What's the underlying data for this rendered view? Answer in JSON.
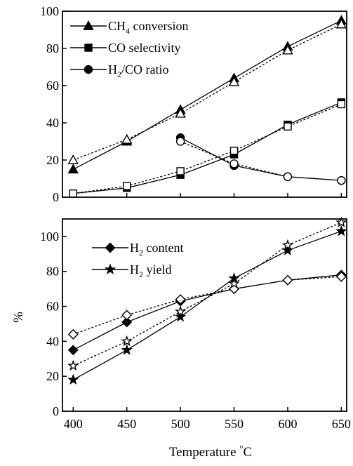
{
  "chart_data": [
    {
      "type": "line",
      "x": [
        400,
        450,
        500,
        550,
        600,
        650
      ],
      "xlim": [
        390,
        655
      ],
      "ylim": [
        0,
        100
      ],
      "yticks": [
        0,
        20,
        40,
        60,
        80,
        100
      ],
      "xlabel": "",
      "ylabel": "",
      "grid": false,
      "legend_position": "top-left",
      "legend": [
        {
          "main": "CH",
          "sub": "4",
          "rest": " conversion",
          "marker": "triangle"
        },
        {
          "main": "CO selectivity",
          "sub": "",
          "rest": "",
          "marker": "square"
        },
        {
          "main": "H",
          "sub": "2",
          "rest": "/CO ratio",
          "marker": "circle"
        }
      ],
      "series": [
        {
          "name": "CH4 conversion",
          "marker": "triangle",
          "filled": true,
          "dashed": false,
          "x": [
            400,
            450,
            500,
            550,
            600,
            650
          ],
          "values": [
            15,
            30,
            47,
            64,
            81,
            95
          ]
        },
        {
          "marker": "triangle",
          "filled": false,
          "dashed": true,
          "x": [
            400,
            450,
            500,
            550,
            600,
            650
          ],
          "values": [
            20,
            31,
            45,
            62,
            79,
            93
          ]
        },
        {
          "name": "CO selectivity",
          "marker": "square",
          "filled": true,
          "dashed": false,
          "x": [
            400,
            450,
            500,
            550,
            600,
            650
          ],
          "values": [
            2,
            5,
            12,
            23,
            39,
            51
          ]
        },
        {
          "marker": "square",
          "filled": false,
          "dashed": true,
          "x": [
            400,
            450,
            500,
            550,
            600,
            650
          ],
          "values": [
            2,
            6,
            14,
            25,
            38,
            50
          ]
        },
        {
          "name": "H2/CO ratio",
          "marker": "circle",
          "filled": true,
          "dashed": false,
          "x": [
            500,
            550,
            600,
            650
          ],
          "values": [
            32,
            17,
            11,
            9
          ]
        },
        {
          "marker": "circle",
          "filled": false,
          "dashed": true,
          "x": [
            500,
            550,
            600,
            650
          ],
          "values": [
            30,
            18,
            11,
            9
          ]
        }
      ]
    },
    {
      "type": "line",
      "x": [
        400,
        450,
        500,
        550,
        600,
        650
      ],
      "xlim": [
        390,
        655
      ],
      "ylim": [
        0,
        110
      ],
      "xticks": [
        400,
        450,
        500,
        550,
        600,
        650
      ],
      "yticks": [
        0,
        20,
        40,
        60,
        80,
        100
      ],
      "xlabel": "Temperature °C",
      "ylabel": "%",
      "grid": false,
      "legend_position": "top-left",
      "legend": [
        {
          "main": "H",
          "sub": "2",
          "rest": " content",
          "marker": "diamond"
        },
        {
          "main": "H",
          "sub": "2",
          "rest": " yield",
          "marker": "star"
        }
      ],
      "series": [
        {
          "name": "H2 content",
          "marker": "diamond",
          "filled": true,
          "dashed": false,
          "x": [
            400,
            450,
            500,
            550,
            600,
            650
          ],
          "values": [
            35,
            51,
            63,
            70,
            75,
            78
          ]
        },
        {
          "marker": "diamond",
          "filled": false,
          "dashed": true,
          "x": [
            400,
            450,
            500,
            550,
            600,
            650
          ],
          "values": [
            44,
            55,
            64,
            70,
            75,
            77
          ]
        },
        {
          "name": "H2 yield",
          "marker": "star",
          "filled": true,
          "dashed": false,
          "x": [
            400,
            450,
            500,
            550,
            600,
            650
          ],
          "values": [
            18,
            35,
            54,
            76,
            92,
            103
          ]
        },
        {
          "marker": "star",
          "filled": false,
          "dashed": true,
          "x": [
            400,
            450,
            500,
            550,
            600,
            650
          ],
          "values": [
            26,
            40,
            57,
            73,
            95,
            108
          ]
        }
      ]
    }
  ]
}
